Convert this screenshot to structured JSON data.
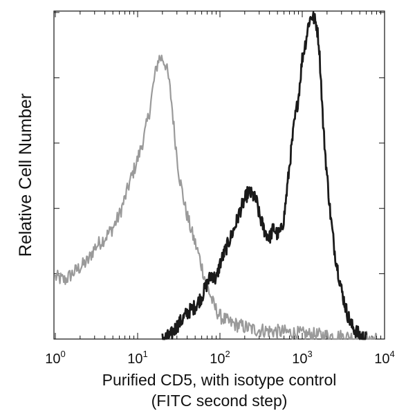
{
  "chart_data": {
    "type": "line",
    "title": "",
    "xlabel_line1": "Purified CD5, with isotype control",
    "xlabel_line2": "(FITC second step)",
    "ylabel": "Relative Cell Number",
    "x_scale": "log",
    "xlim": [
      1,
      10000
    ],
    "ylim": [
      0,
      1.0
    ],
    "grid": false,
    "legend": "none",
    "x_ticks": [
      {
        "base": "10",
        "exp": "0"
      },
      {
        "base": "10",
        "exp": "1"
      },
      {
        "base": "10",
        "exp": "2"
      },
      {
        "base": "10",
        "exp": "3"
      },
      {
        "base": "10",
        "exp": "4"
      }
    ],
    "series": [
      {
        "color": "#9a9a9a",
        "x": [
          1,
          1.3,
          1.6,
          2,
          2.5,
          3,
          4,
          5,
          6,
          7,
          8,
          10,
          12,
          14,
          16,
          18,
          20,
          22,
          24,
          26,
          28,
          32,
          38,
          45,
          55,
          65,
          75,
          85,
          100,
          130,
          180,
          250,
          400,
          700,
          1000,
          2000,
          4000,
          8000
        ],
        "y": [
          0.19,
          0.18,
          0.2,
          0.22,
          0.24,
          0.28,
          0.31,
          0.34,
          0.38,
          0.43,
          0.48,
          0.55,
          0.62,
          0.7,
          0.8,
          0.86,
          0.86,
          0.84,
          0.79,
          0.72,
          0.63,
          0.5,
          0.4,
          0.33,
          0.26,
          0.19,
          0.14,
          0.1,
          0.07,
          0.05,
          0.04,
          0.03,
          0.025,
          0.02,
          0.015,
          0.01,
          0.005,
          0.0
        ]
      },
      {
        "color": "#1a1a1a",
        "x": [
          20,
          25,
          30,
          35,
          40,
          50,
          60,
          70,
          80,
          90,
          100,
          120,
          150,
          180,
          220,
          250,
          280,
          300,
          350,
          400,
          450,
          500,
          550,
          600,
          700,
          800,
          900,
          1000,
          1100,
          1200,
          1300,
          1400,
          1500,
          1600,
          1700,
          1800,
          2000,
          2200,
          2500,
          3000,
          3500,
          4000,
          5000,
          6000
        ],
        "y": [
          0.0,
          0.01,
          0.04,
          0.06,
          0.08,
          0.1,
          0.13,
          0.17,
          0.2,
          0.18,
          0.23,
          0.28,
          0.34,
          0.4,
          0.45,
          0.44,
          0.42,
          0.38,
          0.33,
          0.31,
          0.34,
          0.32,
          0.33,
          0.37,
          0.53,
          0.66,
          0.74,
          0.86,
          0.91,
          0.97,
          0.99,
          0.98,
          0.96,
          0.9,
          0.78,
          0.65,
          0.5,
          0.38,
          0.26,
          0.15,
          0.08,
          0.04,
          0.01,
          0.0
        ]
      }
    ]
  }
}
